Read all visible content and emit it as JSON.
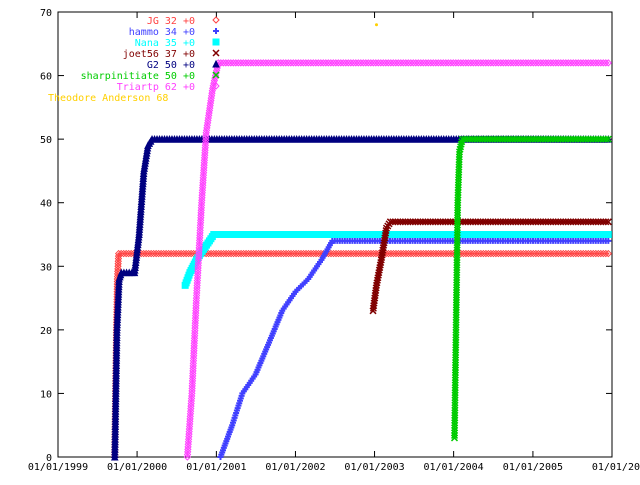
{
  "chart_data": {
    "type": "line",
    "title": "",
    "xlabel": "",
    "ylabel": "",
    "x_type": "date",
    "xlim": [
      "1999-01-01",
      "2006-01-01"
    ],
    "ylim": [
      0,
      70
    ],
    "grid": false,
    "legend_placement": "top-left",
    "x_ticks": [
      {
        "date": "1999-01-01",
        "label": "01/01/1999"
      },
      {
        "date": "2000-01-01",
        "label": "01/01/2000"
      },
      {
        "date": "2001-01-01",
        "label": "01/01/2001"
      },
      {
        "date": "2002-01-01",
        "label": "01/01/2002"
      },
      {
        "date": "2003-01-01",
        "label": "01/01/2003"
      },
      {
        "date": "2004-01-01",
        "label": "01/01/2004"
      },
      {
        "date": "2005-01-01",
        "label": "01/01/2005"
      },
      {
        "date": "2006-01-01",
        "label": "01/01/20"
      }
    ],
    "y_ticks": [
      0,
      10,
      20,
      30,
      40,
      50,
      60,
      70
    ],
    "series": [
      {
        "name": "JG",
        "legend": "JG 32 +0",
        "color": "#ff4040",
        "marker": "diamond",
        "points": [
          [
            "1999-09-20",
            0
          ],
          [
            "1999-09-24",
            10
          ],
          [
            "1999-09-28",
            20
          ],
          [
            "1999-10-02",
            28
          ],
          [
            "1999-10-08",
            32
          ],
          [
            "2005-12-15",
            32
          ]
        ]
      },
      {
        "name": "hammo",
        "legend": "hammo 34 +0",
        "color": "#4040ff",
        "marker": "plus",
        "points": [
          [
            "2001-01-20",
            0
          ],
          [
            "2001-03-15",
            5
          ],
          [
            "2001-05-01",
            10
          ],
          [
            "2001-07-01",
            13
          ],
          [
            "2001-09-01",
            18
          ],
          [
            "2001-11-01",
            23
          ],
          [
            "2002-01-01",
            26
          ],
          [
            "2002-03-01",
            28
          ],
          [
            "2002-05-01",
            31
          ],
          [
            "2002-06-20",
            34
          ],
          [
            "2005-12-15",
            34
          ]
        ]
      },
      {
        "name": "Nana",
        "legend": "Nana 35 +0",
        "color": "#00ffff",
        "marker": "square",
        "points": [
          [
            "2000-08-10",
            27
          ],
          [
            "2000-09-01",
            29
          ],
          [
            "2000-10-01",
            31
          ],
          [
            "2000-11-10",
            33
          ],
          [
            "2000-12-20",
            35
          ],
          [
            "2005-12-15",
            35
          ]
        ]
      },
      {
        "name": "joet56",
        "legend": "joet56 37 +0",
        "color": "#800000",
        "marker": "cross",
        "points": [
          [
            "2002-12-25",
            23
          ],
          [
            "2003-01-10",
            27
          ],
          [
            "2003-02-01",
            31
          ],
          [
            "2003-02-25",
            36
          ],
          [
            "2003-03-15",
            37
          ],
          [
            "2005-12-15",
            37
          ]
        ]
      },
      {
        "name": "G2",
        "legend": "G2 50 +0",
        "color": "#000080",
        "marker": "triangle",
        "points": [
          [
            "1999-09-20",
            0
          ],
          [
            "1999-09-25",
            10
          ],
          [
            "1999-09-30",
            20
          ],
          [
            "1999-10-10",
            28
          ],
          [
            "1999-10-20",
            29
          ],
          [
            "1999-12-20",
            29
          ],
          [
            "2000-01-10",
            35
          ],
          [
            "2000-02-01",
            45
          ],
          [
            "2000-02-20",
            49
          ],
          [
            "2000-03-10",
            50
          ],
          [
            "2005-12-15",
            50
          ]
        ]
      },
      {
        "name": "sharpinitiate",
        "legend": "sharpinitiate 50 +0",
        "color": "#00cc00",
        "marker": "cross",
        "points": [
          [
            "2004-01-05",
            3
          ],
          [
            "2004-01-12",
            20
          ],
          [
            "2004-01-20",
            40
          ],
          [
            "2004-01-28",
            48
          ],
          [
            "2004-02-10",
            50
          ],
          [
            "2005-12-15",
            50
          ]
        ]
      },
      {
        "name": "Triartp",
        "legend": "Triartp 62 +0",
        "color": "#ff40ff",
        "marker": "diamond",
        "points": [
          [
            "2000-08-20",
            0
          ],
          [
            "2000-09-10",
            10
          ],
          [
            "2000-10-01",
            25
          ],
          [
            "2000-10-25",
            40
          ],
          [
            "2000-11-15",
            51
          ],
          [
            "2000-12-15",
            58
          ],
          [
            "2001-01-10",
            62
          ],
          [
            "2005-12-15",
            62
          ]
        ]
      },
      {
        "name": "Theodore Anderson",
        "legend": "Theodore Anderson 68",
        "color": "#ffd000",
        "marker": "dot",
        "points": [
          [
            "2003-01-10",
            68
          ]
        ]
      }
    ]
  }
}
